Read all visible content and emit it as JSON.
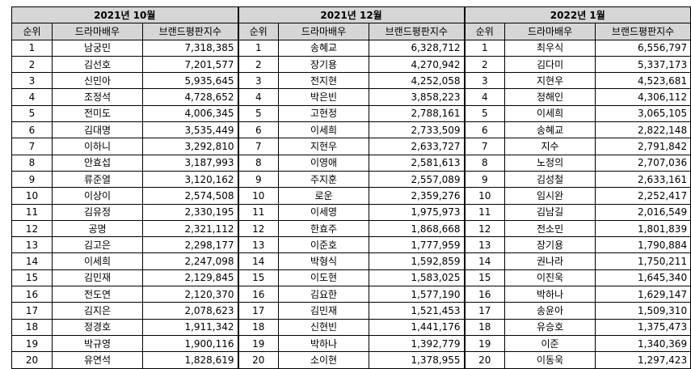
{
  "columns": {
    "rank": "순위",
    "actor": "드라마배우",
    "index": "브랜드평판지수"
  },
  "periods": [
    {
      "title": "2021년 10월",
      "rows": [
        {
          "rank": "1",
          "name": "남궁민",
          "score": "7,318,385"
        },
        {
          "rank": "2",
          "name": "김선호",
          "score": "7,201,577"
        },
        {
          "rank": "3",
          "name": "신민아",
          "score": "5,935,645"
        },
        {
          "rank": "4",
          "name": "조정석",
          "score": "4,728,652"
        },
        {
          "rank": "5",
          "name": "전미도",
          "score": "4,006,345"
        },
        {
          "rank": "6",
          "name": "김대명",
          "score": "3,535,449"
        },
        {
          "rank": "7",
          "name": "이하니",
          "score": "3,292,810"
        },
        {
          "rank": "8",
          "name": "안효섭",
          "score": "3,187,993"
        },
        {
          "rank": "9",
          "name": "류준열",
          "score": "3,120,162"
        },
        {
          "rank": "10",
          "name": "이상이",
          "score": "2,574,508"
        },
        {
          "rank": "11",
          "name": "김유정",
          "score": "2,330,195"
        },
        {
          "rank": "12",
          "name": "공명",
          "score": "2,321,112"
        },
        {
          "rank": "13",
          "name": "김고은",
          "score": "2,298,177"
        },
        {
          "rank": "14",
          "name": "이세희",
          "score": "2,247,098"
        },
        {
          "rank": "15",
          "name": "김민재",
          "score": "2,129,845"
        },
        {
          "rank": "16",
          "name": "전도연",
          "score": "2,120,370"
        },
        {
          "rank": "17",
          "name": "김지은",
          "score": "2,078,623"
        },
        {
          "rank": "18",
          "name": "정경호",
          "score": "1,911,342"
        },
        {
          "rank": "19",
          "name": "박규영",
          "score": "1,900,116"
        },
        {
          "rank": "20",
          "name": "유연석",
          "score": "1,828,619"
        }
      ]
    },
    {
      "title": "2021년 12월",
      "rows": [
        {
          "rank": "1",
          "name": "송혜교",
          "score": "6,328,712"
        },
        {
          "rank": "2",
          "name": "장기용",
          "score": "4,270,942"
        },
        {
          "rank": "3",
          "name": "전지현",
          "score": "4,252,058"
        },
        {
          "rank": "4",
          "name": "박은빈",
          "score": "3,858,223"
        },
        {
          "rank": "5",
          "name": "고현정",
          "score": "2,788,161"
        },
        {
          "rank": "6",
          "name": "이세희",
          "score": "2,733,509"
        },
        {
          "rank": "7",
          "name": "지현우",
          "score": "2,633,727"
        },
        {
          "rank": "8",
          "name": "이영애",
          "score": "2,581,613"
        },
        {
          "rank": "9",
          "name": "주지훈",
          "score": "2,557,089"
        },
        {
          "rank": "10",
          "name": "로운",
          "score": "2,359,276"
        },
        {
          "rank": "11",
          "name": "이세영",
          "score": "1,975,973"
        },
        {
          "rank": "12",
          "name": "한효주",
          "score": "1,868,668"
        },
        {
          "rank": "13",
          "name": "이준호",
          "score": "1,777,959"
        },
        {
          "rank": "14",
          "name": "박형식",
          "score": "1,592,859"
        },
        {
          "rank": "15",
          "name": "이도현",
          "score": "1,583,025"
        },
        {
          "rank": "16",
          "name": "김요한",
          "score": "1,577,190"
        },
        {
          "rank": "17",
          "name": "김민재",
          "score": "1,521,453"
        },
        {
          "rank": "18",
          "name": "신현빈",
          "score": "1,441,176"
        },
        {
          "rank": "19",
          "name": "박하나",
          "score": "1,392,779"
        },
        {
          "rank": "20",
          "name": "소이현",
          "score": "1,378,955"
        }
      ]
    },
    {
      "title": "2022년 1월",
      "rows": [
        {
          "rank": "1",
          "name": "최우식",
          "score": "6,556,797"
        },
        {
          "rank": "2",
          "name": "김다미",
          "score": "5,337,173"
        },
        {
          "rank": "3",
          "name": "지현우",
          "score": "4,523,681"
        },
        {
          "rank": "4",
          "name": "정해인",
          "score": "4,306,112"
        },
        {
          "rank": "5",
          "name": "이세희",
          "score": "3,065,105"
        },
        {
          "rank": "6",
          "name": "송혜교",
          "score": "2,822,148"
        },
        {
          "rank": "7",
          "name": "지수",
          "score": "2,791,842"
        },
        {
          "rank": "8",
          "name": "노정의",
          "score": "2,707,036"
        },
        {
          "rank": "9",
          "name": "김성철",
          "score": "2,633,161"
        },
        {
          "rank": "10",
          "name": "임시완",
          "score": "2,252,417"
        },
        {
          "rank": "11",
          "name": "김남길",
          "score": "2,016,549"
        },
        {
          "rank": "12",
          "name": "전소민",
          "score": "1,801,839"
        },
        {
          "rank": "13",
          "name": "장기용",
          "score": "1,790,884"
        },
        {
          "rank": "14",
          "name": "권나라",
          "score": "1,750,211"
        },
        {
          "rank": "15",
          "name": "이진욱",
          "score": "1,645,340"
        },
        {
          "rank": "16",
          "name": "박하나",
          "score": "1,629,147"
        },
        {
          "rank": "17",
          "name": "송윤아",
          "score": "1,509,310"
        },
        {
          "rank": "18",
          "name": "유승호",
          "score": "1,375,473"
        },
        {
          "rank": "19",
          "name": "이준",
          "score": "1,340,369"
        },
        {
          "rank": "20",
          "name": "이동욱",
          "score": "1,297,423"
        }
      ]
    }
  ]
}
